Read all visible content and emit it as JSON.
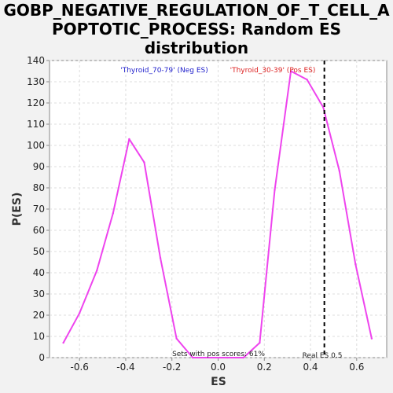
{
  "chart_data": {
    "type": "line",
    "title_lines": [
      "GOBP_NEGATIVE_REGULATION_OF_T_CELL_A",
      "POPTOTIC_PROCESS: Random ES",
      "distribution"
    ],
    "xlabel": "ES",
    "ylabel": "P(ES)",
    "xlim": [
      -0.73,
      0.73
    ],
    "ylim": [
      0,
      140
    ],
    "xticks": [
      -0.6,
      -0.4,
      -0.2,
      0.0,
      0.2,
      0.4,
      0.6
    ],
    "xtick_labels": [
      "-0.6",
      "-0.4",
      "-0.2",
      "0.0",
      "0.2",
      "0.4",
      "0.6"
    ],
    "yticks": [
      0,
      10,
      20,
      30,
      40,
      50,
      60,
      70,
      80,
      90,
      100,
      110,
      120,
      130,
      140
    ],
    "ytick_labels": [
      "0",
      "10",
      "20",
      "30",
      "40",
      "50",
      "60",
      "70",
      "80",
      "90",
      "100",
      "110",
      "120",
      "130",
      "140"
    ],
    "grid": true,
    "series": [
      {
        "color": "#ee44ee",
        "x": [
          -0.67,
          -0.6,
          -0.525,
          -0.455,
          -0.385,
          -0.32,
          -0.25,
          -0.18,
          -0.11,
          0.04,
          0.11,
          0.18,
          0.245,
          0.315,
          0.385,
          0.455,
          0.525,
          0.595,
          0.665
        ],
        "y": [
          7,
          21,
          41,
          68,
          103,
          92,
          47,
          9,
          0,
          0,
          0,
          7,
          79,
          135,
          131,
          118,
          88,
          44,
          9
        ]
      }
    ],
    "vline": {
      "x": 0.46,
      "style": "dashed",
      "color": "#000000"
    },
    "annotations": {
      "neg_label": "'Thyroid_70-79' (Neg ES)",
      "neg_color": "#2222cc",
      "pos_label": "'Thyroid_30-39' (Pos ES)",
      "pos_color": "#dd2222",
      "pos_scores": "Sets with pos scores: 61%",
      "real_es": "Real ES 0.5"
    }
  }
}
